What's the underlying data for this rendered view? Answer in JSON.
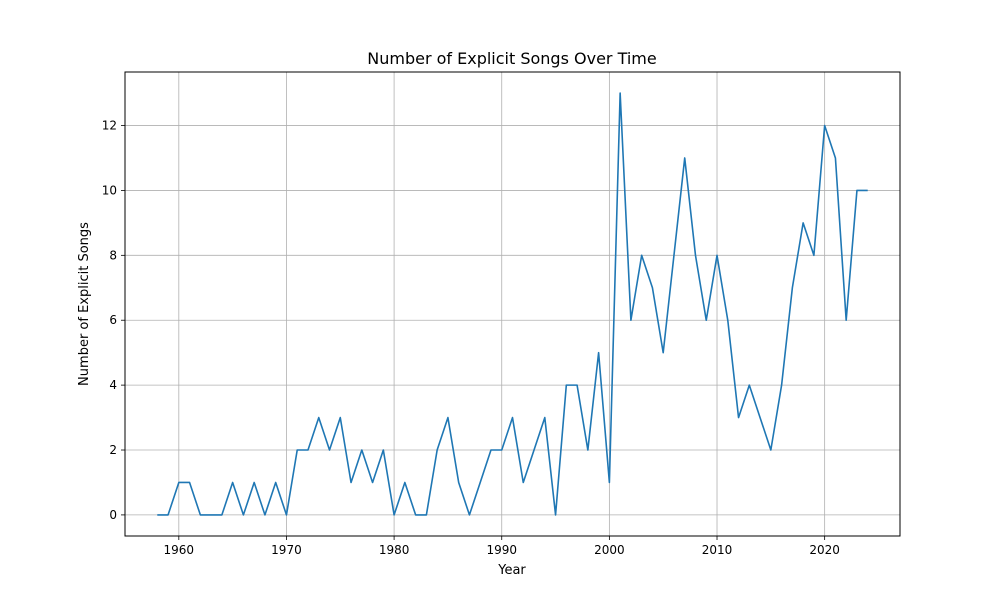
{
  "chart_data": {
    "type": "line",
    "title": "Number of Explicit Songs Over Time",
    "xlabel": "Year",
    "ylabel": "Number of Explicit Songs",
    "xlim": [
      1955,
      2027
    ],
    "ylim": [
      -0.65,
      13.65
    ],
    "xticks": [
      1960,
      1970,
      1980,
      1990,
      2000,
      2010,
      2020
    ],
    "yticks": [
      0,
      2,
      4,
      6,
      8,
      10,
      12
    ],
    "grid": true,
    "line_color": "#1f77b4",
    "series": [
      {
        "x": [
          1958,
          1959,
          1960,
          1961,
          1962,
          1963,
          1964,
          1965,
          1966,
          1967,
          1968,
          1969,
          1970,
          1971,
          1972,
          1973,
          1974,
          1975,
          1976,
          1977,
          1978,
          1979,
          1980,
          1981,
          1982,
          1983,
          1984,
          1985,
          1986,
          1987,
          1988,
          1989,
          1990,
          1991,
          1992,
          1993,
          1994,
          1995,
          1996,
          1997,
          1998,
          1999,
          2000,
          2001,
          2002,
          2003,
          2004,
          2005,
          2006,
          2007,
          2008,
          2009,
          2010,
          2011,
          2012,
          2013,
          2014,
          2015,
          2016,
          2017,
          2018,
          2019,
          2020,
          2021,
          2022,
          2023,
          2024
        ],
        "y": [
          0,
          0,
          1,
          1,
          0,
          0,
          0,
          1,
          0,
          1,
          0,
          1,
          0,
          2,
          2,
          3,
          2,
          3,
          1,
          2,
          1,
          2,
          0,
          1,
          0,
          0,
          2,
          3,
          1,
          0,
          1,
          2,
          2,
          3,
          1,
          2,
          3,
          0,
          4,
          4,
          2,
          5,
          1,
          13,
          6,
          8,
          7,
          5,
          8,
          11,
          8,
          6,
          8,
          6,
          3,
          4,
          3,
          2,
          4,
          7,
          9,
          8,
          12,
          11,
          6,
          10,
          10
        ]
      }
    ]
  }
}
